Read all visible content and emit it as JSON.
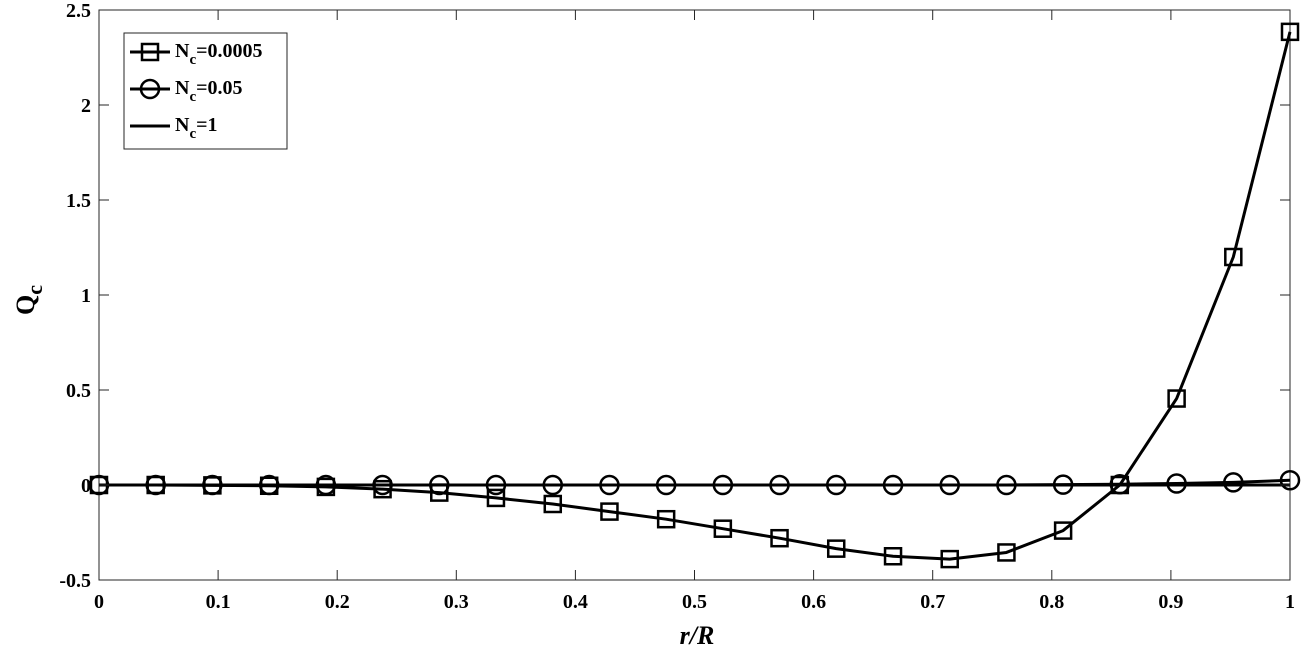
{
  "chart_data": {
    "type": "line",
    "xlabel": "r/R",
    "ylabel": {
      "main": "Q",
      "sub": "c"
    },
    "xlim": [
      0,
      1
    ],
    "ylim": [
      -0.5,
      2.5
    ],
    "xticks": [
      "0",
      "0.1",
      "0.2",
      "0.3",
      "0.4",
      "0.5",
      "0.6",
      "0.7",
      "0.8",
      "0.9",
      "1"
    ],
    "yticks": [
      "-0.5",
      "0",
      "0.5",
      "1",
      "1.5",
      "2",
      "2.5"
    ],
    "grid": false,
    "legend_position": "top-left",
    "x": [
      0,
      0.0476,
      0.0952,
      0.1429,
      0.1905,
      0.2381,
      0.2857,
      0.3333,
      0.381,
      0.4286,
      0.4762,
      0.5238,
      0.5714,
      0.619,
      0.6667,
      0.7143,
      0.7619,
      0.8095,
      0.8571,
      0.9048,
      0.9524,
      1.0
    ],
    "series": [
      {
        "name": "N_c=0.0005",
        "legend": {
          "main": "N",
          "sub": "c",
          "rest": "=0.0005"
        },
        "marker": "square",
        "values": [
          0,
          0,
          -0.002,
          -0.004,
          -0.01,
          -0.022,
          -0.04,
          -0.068,
          -0.1,
          -0.14,
          -0.18,
          -0.23,
          -0.28,
          -0.335,
          -0.375,
          -0.39,
          -0.355,
          -0.24,
          0,
          0.455,
          1.2,
          2.385
        ]
      },
      {
        "name": "N_c=0.05",
        "legend": {
          "main": "N",
          "sub": "c",
          "rest": "=0.05"
        },
        "marker": "circle",
        "values": [
          0,
          0,
          0,
          0,
          0,
          0,
          0,
          0,
          0,
          0,
          0,
          0,
          0,
          0,
          0,
          0,
          0,
          0.002,
          0.004,
          0.008,
          0.014,
          0.025
        ]
      },
      {
        "name": "N_c=1",
        "legend": {
          "main": "N",
          "sub": "c",
          "rest": "=1"
        },
        "marker": "none",
        "values": [
          0,
          0,
          0,
          0,
          0,
          0,
          0,
          0,
          0,
          0,
          0,
          0,
          0,
          0,
          0,
          0,
          0,
          0,
          0,
          0,
          0,
          0
        ]
      }
    ]
  }
}
